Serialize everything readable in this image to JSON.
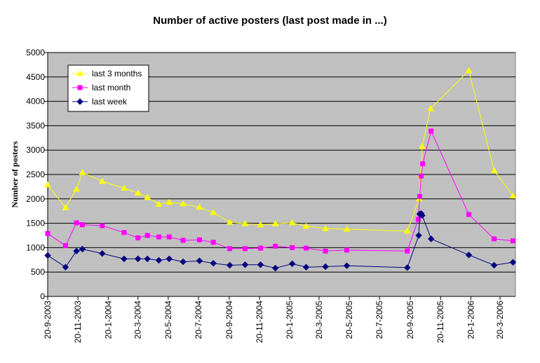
{
  "chart_data": {
    "type": "line",
    "title": "Number of active posters (last post made in ...)",
    "xlabel": "",
    "ylabel": "Number of posters",
    "ylim": [
      0,
      5000
    ],
    "y_ticks": [
      "0",
      "500",
      "1000",
      "1500",
      "2000",
      "2500",
      "3000",
      "3500",
      "4000",
      "4500",
      "5000"
    ],
    "x_range": [
      "2003-09-20",
      "2006-04-20"
    ],
    "x_ticks": [
      {
        "date": "2003-09-20",
        "label": "20-9-2003"
      },
      {
        "date": "2003-11-20",
        "label": "20-11-2003"
      },
      {
        "date": "2004-01-20",
        "label": "20-1-2004"
      },
      {
        "date": "2004-03-20",
        "label": "20-3-2004"
      },
      {
        "date": "2004-05-20",
        "label": "20-5-2004"
      },
      {
        "date": "2004-07-20",
        "label": "20-7-2004"
      },
      {
        "date": "2004-09-20",
        "label": "20-9-2004"
      },
      {
        "date": "2004-11-20",
        "label": "20-11-2004"
      },
      {
        "date": "2005-01-20",
        "label": "20-1-2005"
      },
      {
        "date": "2005-03-20",
        "label": "20-3-2005"
      },
      {
        "date": "2005-05-20",
        "label": "20-5-2005"
      },
      {
        "date": "2005-07-20",
        "label": "20-7-2005"
      },
      {
        "date": "2005-09-20",
        "label": "20-9-2005"
      },
      {
        "date": "2005-11-20",
        "label": "20-11-2005"
      },
      {
        "date": "2006-01-20",
        "label": "20-1-2006"
      },
      {
        "date": "2006-03-20",
        "label": "20-3-2006"
      }
    ],
    "x": [
      "2003-09-20",
      "2003-10-07",
      "2003-10-28",
      "2003-11-05",
      "2003-12-01",
      "2004-01-15",
      "2004-02-15",
      "2004-03-01",
      "2004-03-15",
      "2004-04-01",
      "2004-04-15",
      "2004-05-01",
      "2004-05-15",
      "2004-06-01",
      "2004-06-15",
      "2004-07-01",
      "2004-07-15",
      "2004-08-01",
      "2004-08-15",
      "2004-09-01",
      "2004-09-15",
      "2004-10-01",
      "2004-10-15",
      "2004-11-01",
      "2004-11-15",
      "2004-12-01",
      "2004-12-15",
      "2005-01-01",
      "2005-01-15",
      "2005-02-01",
      "2005-02-15",
      "2005-03-01",
      "2005-03-15",
      "2005-04-01",
      "2005-04-15",
      "2005-05-01",
      "2005-05-15",
      "2005-06-01",
      "2005-06-15",
      "2005-07-01",
      "2005-07-15",
      "2005-08-01",
      "2005-08-15",
      "2005-09-01",
      "2005-09-15",
      "2005-10-01",
      "2005-10-15",
      "2005-10-22",
      "2005-10-28",
      "2005-11-01",
      "2005-11-15",
      "2005-12-01",
      "2006-01-01",
      "2006-01-20",
      "2006-02-01",
      "2006-02-15",
      "2006-03-01",
      "2006-03-15",
      "2006-04-01",
      "2006-04-15",
      "2006-04-20"
    ],
    "series": [
      {
        "name": "last 3 months",
        "color": "#ffff00",
        "marker": "triangle",
        "points": [
          [
            "2003-09-20",
            2290
          ],
          [
            "2003-10-26",
            1820
          ],
          [
            "2003-11-17",
            2200
          ],
          [
            "2003-11-29",
            2540
          ],
          [
            "2004-01-08",
            2360
          ],
          [
            "2004-02-21",
            2220
          ],
          [
            "2004-03-20",
            2120
          ],
          [
            "2004-04-08",
            2030
          ],
          [
            "2004-05-01",
            1890
          ],
          [
            "2004-05-22",
            1930
          ],
          [
            "2004-06-19",
            1900
          ],
          [
            "2004-07-22",
            1830
          ],
          [
            "2004-08-19",
            1720
          ],
          [
            "2004-09-21",
            1520
          ],
          [
            "2004-10-22",
            1490
          ],
          [
            "2004-11-22",
            1470
          ],
          [
            "2004-12-22",
            1490
          ],
          [
            "2005-01-25",
            1510
          ],
          [
            "2005-02-22",
            1440
          ],
          [
            "2005-04-02",
            1390
          ],
          [
            "2005-05-15",
            1380
          ],
          [
            "2005-09-14",
            1340
          ],
          [
            "2005-10-08",
            2000
          ],
          [
            "2005-10-11",
            2480
          ],
          [
            "2005-10-14",
            3080
          ],
          [
            "2005-10-31",
            3850
          ],
          [
            "2006-01-16",
            4630
          ],
          [
            "2006-03-08",
            2580
          ],
          [
            "2006-04-15",
            2060
          ]
        ]
      },
      {
        "name": "last month",
        "color": "#ff00ff",
        "marker": "square",
        "points": [
          [
            "2003-09-20",
            1290
          ],
          [
            "2003-10-26",
            1040
          ],
          [
            "2003-11-17",
            1510
          ],
          [
            "2003-11-29",
            1470
          ],
          [
            "2004-01-08",
            1450
          ],
          [
            "2004-02-21",
            1310
          ],
          [
            "2004-03-20",
            1200
          ],
          [
            "2004-04-08",
            1250
          ],
          [
            "2004-05-01",
            1220
          ],
          [
            "2004-05-22",
            1220
          ],
          [
            "2004-06-19",
            1150
          ],
          [
            "2004-07-22",
            1160
          ],
          [
            "2004-08-19",
            1110
          ],
          [
            "2004-09-21",
            980
          ],
          [
            "2004-10-22",
            980
          ],
          [
            "2004-11-22",
            990
          ],
          [
            "2004-12-22",
            1030
          ],
          [
            "2005-01-25",
            1000
          ],
          [
            "2005-02-22",
            990
          ],
          [
            "2005-04-02",
            930
          ],
          [
            "2005-05-15",
            950
          ],
          [
            "2005-09-14",
            930
          ],
          [
            "2005-10-06",
            1580
          ],
          [
            "2005-10-09",
            2050
          ],
          [
            "2005-10-12",
            2470
          ],
          [
            "2005-10-15",
            2720
          ],
          [
            "2005-11-01",
            3390
          ],
          [
            "2006-01-16",
            1680
          ],
          [
            "2006-03-08",
            1180
          ],
          [
            "2006-04-15",
            1140
          ]
        ]
      },
      {
        "name": "last week",
        "color": "#000080",
        "marker": "diamond",
        "points": [
          [
            "2003-09-20",
            840
          ],
          [
            "2003-10-26",
            600
          ],
          [
            "2003-11-17",
            930
          ],
          [
            "2003-11-29",
            970
          ],
          [
            "2004-01-08",
            880
          ],
          [
            "2004-02-21",
            770
          ],
          [
            "2004-03-20",
            770
          ],
          [
            "2004-04-08",
            770
          ],
          [
            "2004-05-01",
            740
          ],
          [
            "2004-05-22",
            770
          ],
          [
            "2004-06-19",
            710
          ],
          [
            "2004-07-22",
            730
          ],
          [
            "2004-08-19",
            680
          ],
          [
            "2004-09-21",
            640
          ],
          [
            "2004-10-22",
            650
          ],
          [
            "2004-11-22",
            650
          ],
          [
            "2004-12-22",
            580
          ],
          [
            "2005-01-25",
            670
          ],
          [
            "2005-02-22",
            600
          ],
          [
            "2005-04-02",
            610
          ],
          [
            "2005-05-15",
            630
          ],
          [
            "2005-09-14",
            590
          ],
          [
            "2005-10-07",
            1250
          ],
          [
            "2005-10-09",
            1690
          ],
          [
            "2005-10-12",
            1700
          ],
          [
            "2005-10-14",
            1660
          ],
          [
            "2005-11-01",
            1180
          ],
          [
            "2006-01-16",
            850
          ],
          [
            "2006-03-08",
            640
          ],
          [
            "2006-04-15",
            700
          ]
        ]
      }
    ],
    "legend": {
      "placement": "top-left",
      "order": [
        "last 3 months",
        "last month",
        "last week"
      ]
    },
    "grid": {
      "horizontal": true,
      "vertical": false
    },
    "colors": {
      "plot_background": "#c0c0c0",
      "gridline": "#000000"
    }
  }
}
